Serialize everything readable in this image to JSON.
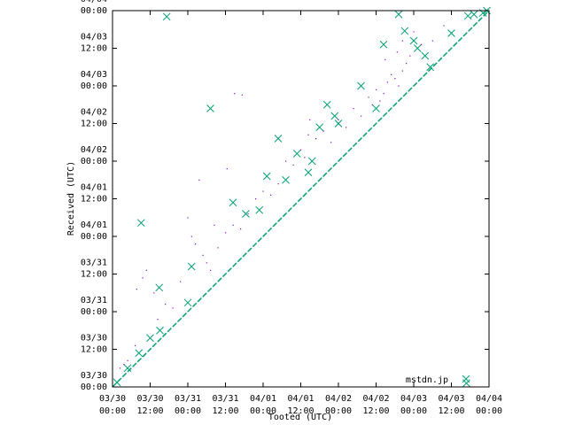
{
  "chart_data": {
    "type": "scatter",
    "xlabel": "Tooted (UTC)",
    "ylabel": "Received (UTC)",
    "xlim": [
      0,
      5
    ],
    "ylim": [
      0,
      5
    ],
    "ticks": [
      {
        "v": 0,
        "top": "03/30",
        "bottom": "00:00"
      },
      {
        "v": 0.5,
        "top": "03/30",
        "bottom": "12:00"
      },
      {
        "v": 1,
        "top": "03/31",
        "bottom": "00:00"
      },
      {
        "v": 1.5,
        "top": "03/31",
        "bottom": "12:00"
      },
      {
        "v": 2,
        "top": "04/01",
        "bottom": "00:00"
      },
      {
        "v": 2.5,
        "top": "04/01",
        "bottom": "12:00"
      },
      {
        "v": 3,
        "top": "04/02",
        "bottom": "00:00"
      },
      {
        "v": 3.5,
        "top": "04/02",
        "bottom": "12:00"
      },
      {
        "v": 4,
        "top": "04/03",
        "bottom": "00:00"
      },
      {
        "v": 4.5,
        "top": "04/03",
        "bottom": "12:00"
      },
      {
        "v": 5,
        "top": "04/04",
        "bottom": "00:00"
      }
    ],
    "legend": {
      "label": "mstdn.jp",
      "position": "bottom-right",
      "color": "#009e73"
    },
    "colors": {
      "series": "#009e73",
      "minor": "#9400d3"
    },
    "series": [
      {
        "marker": "x",
        "points": [
          [
            0.06,
            0.06
          ],
          [
            0.2,
            0.25
          ],
          [
            0.35,
            0.45
          ],
          [
            0.5,
            0.65
          ],
          [
            0.63,
            0.75
          ],
          [
            0.72,
            4.92
          ],
          [
            0.38,
            2.18
          ],
          [
            0.62,
            1.32
          ],
          [
            1.0,
            1.12
          ],
          [
            1.05,
            1.6
          ],
          [
            1.3,
            3.7
          ],
          [
            1.6,
            2.45
          ],
          [
            1.77,
            2.3
          ],
          [
            1.95,
            2.35
          ],
          [
            2.05,
            2.8
          ],
          [
            2.2,
            3.3
          ],
          [
            2.3,
            2.75
          ],
          [
            2.45,
            3.1
          ],
          [
            2.6,
            2.85
          ],
          [
            2.65,
            3.0
          ],
          [
            2.75,
            3.45
          ],
          [
            2.85,
            3.75
          ],
          [
            2.95,
            3.6
          ],
          [
            3.0,
            3.5
          ],
          [
            3.3,
            4.0
          ],
          [
            3.5,
            3.7
          ],
          [
            3.6,
            4.55
          ],
          [
            3.8,
            4.95
          ],
          [
            3.88,
            4.73
          ],
          [
            4.0,
            4.6
          ],
          [
            4.05,
            4.5
          ],
          [
            4.15,
            4.4
          ],
          [
            4.22,
            4.25
          ],
          [
            4.5,
            4.7
          ],
          [
            4.72,
            4.93
          ],
          [
            4.8,
            4.95
          ],
          [
            4.92,
            4.97
          ],
          [
            4.7,
            0.05
          ],
          [
            4.97,
            5.0
          ]
        ]
      },
      {
        "marker": "dot",
        "points": [
          [
            0.1,
            0.25
          ],
          [
            0.15,
            0.3
          ],
          [
            0.2,
            0.35
          ],
          [
            0.3,
            0.55
          ],
          [
            0.32,
            1.3
          ],
          [
            0.4,
            1.45
          ],
          [
            0.45,
            1.55
          ],
          [
            0.55,
            1.25
          ],
          [
            0.6,
            0.9
          ],
          [
            0.7,
            1.1
          ],
          [
            0.8,
            1.05
          ],
          [
            0.9,
            1.4
          ],
          [
            1.0,
            2.25
          ],
          [
            1.05,
            2.0
          ],
          [
            1.1,
            1.9
          ],
          [
            1.15,
            2.75
          ],
          [
            1.2,
            1.75
          ],
          [
            1.25,
            1.65
          ],
          [
            1.3,
            1.55
          ],
          [
            1.35,
            2.15
          ],
          [
            1.4,
            1.85
          ],
          [
            1.5,
            2.05
          ],
          [
            1.6,
            2.15
          ],
          [
            1.7,
            2.1
          ],
          [
            1.8,
            2.3
          ],
          [
            1.9,
            2.5
          ],
          [
            2.0,
            2.6
          ],
          [
            2.1,
            2.55
          ],
          [
            2.2,
            2.7
          ],
          [
            2.3,
            3.0
          ],
          [
            2.4,
            2.95
          ],
          [
            2.5,
            3.15
          ],
          [
            2.55,
            3.05
          ],
          [
            2.6,
            3.35
          ],
          [
            2.7,
            3.3
          ],
          [
            2.8,
            3.4
          ],
          [
            2.9,
            3.25
          ],
          [
            3.0,
            3.55
          ],
          [
            3.1,
            3.45
          ],
          [
            3.2,
            3.7
          ],
          [
            3.3,
            3.6
          ],
          [
            3.4,
            3.85
          ],
          [
            3.45,
            3.75
          ],
          [
            3.5,
            3.95
          ],
          [
            3.55,
            3.8
          ],
          [
            3.6,
            3.9
          ],
          [
            3.65,
            4.05
          ],
          [
            3.7,
            4.15
          ],
          [
            3.75,
            4.1
          ],
          [
            3.8,
            4.0
          ],
          [
            3.85,
            4.2
          ],
          [
            3.9,
            4.3
          ],
          [
            3.95,
            4.4
          ],
          [
            1.62,
            3.9
          ],
          [
            1.72,
            3.88
          ],
          [
            1.52,
            2.9
          ],
          [
            2.62,
            3.55
          ],
          [
            3.78,
            4.45
          ],
          [
            3.62,
            4.35
          ],
          [
            3.85,
            4.6
          ],
          [
            4.0,
            4.72
          ],
          [
            4.1,
            4.55
          ],
          [
            4.25,
            4.6
          ],
          [
            4.4,
            4.8
          ]
        ]
      }
    ]
  }
}
